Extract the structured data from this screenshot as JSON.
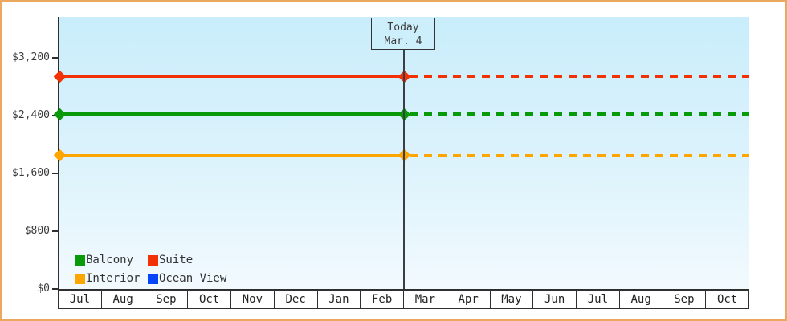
{
  "window": {
    "background": "#ffffff",
    "frame_border_color": "#eba85f"
  },
  "chart_data": {
    "type": "line",
    "title": "",
    "xlabel": "",
    "ylabel": "",
    "x_categories": [
      "Jul",
      "Aug",
      "Sep",
      "Oct",
      "Nov",
      "Dec",
      "Jan",
      "Feb",
      "Mar",
      "Apr",
      "May",
      "Jun",
      "Jul",
      "Aug",
      "Sep",
      "Oct"
    ],
    "y_tick_labels": [
      "$3,200",
      "$2,400",
      "$1,600",
      "$800",
      "$0"
    ],
    "y_tick_values": [
      3200,
      2400,
      1600,
      800,
      0
    ],
    "ylim": [
      0,
      3770
    ],
    "grid": false,
    "legend_position": "bottom-left",
    "plot_background": {
      "top": "#c9edfb",
      "bottom": "#f2fafe"
    },
    "today_marker": {
      "line1": "Today",
      "line2": "Mar. 4",
      "month_index": 8,
      "axis_fraction": 0.5
    },
    "series": [
      {
        "name": "Balcony",
        "color": "#089a08",
        "value": 2420,
        "style": "solid-then-dashed"
      },
      {
        "name": "Suite",
        "color": "#f23104",
        "value": 2940,
        "style": "solid-then-dashed"
      },
      {
        "name": "Interior",
        "color": "#ffa500",
        "value": 1850,
        "style": "solid-then-dashed"
      },
      {
        "name": "Ocean View",
        "color": "#0546fb",
        "value": null,
        "style": "none"
      }
    ],
    "legend": [
      {
        "label": "Balcony",
        "color": "#089a08"
      },
      {
        "label": "Suite",
        "color": "#f23104"
      },
      {
        "label": "Interior",
        "color": "#ffa500"
      },
      {
        "label": "Ocean View",
        "color": "#0546fb"
      }
    ]
  }
}
